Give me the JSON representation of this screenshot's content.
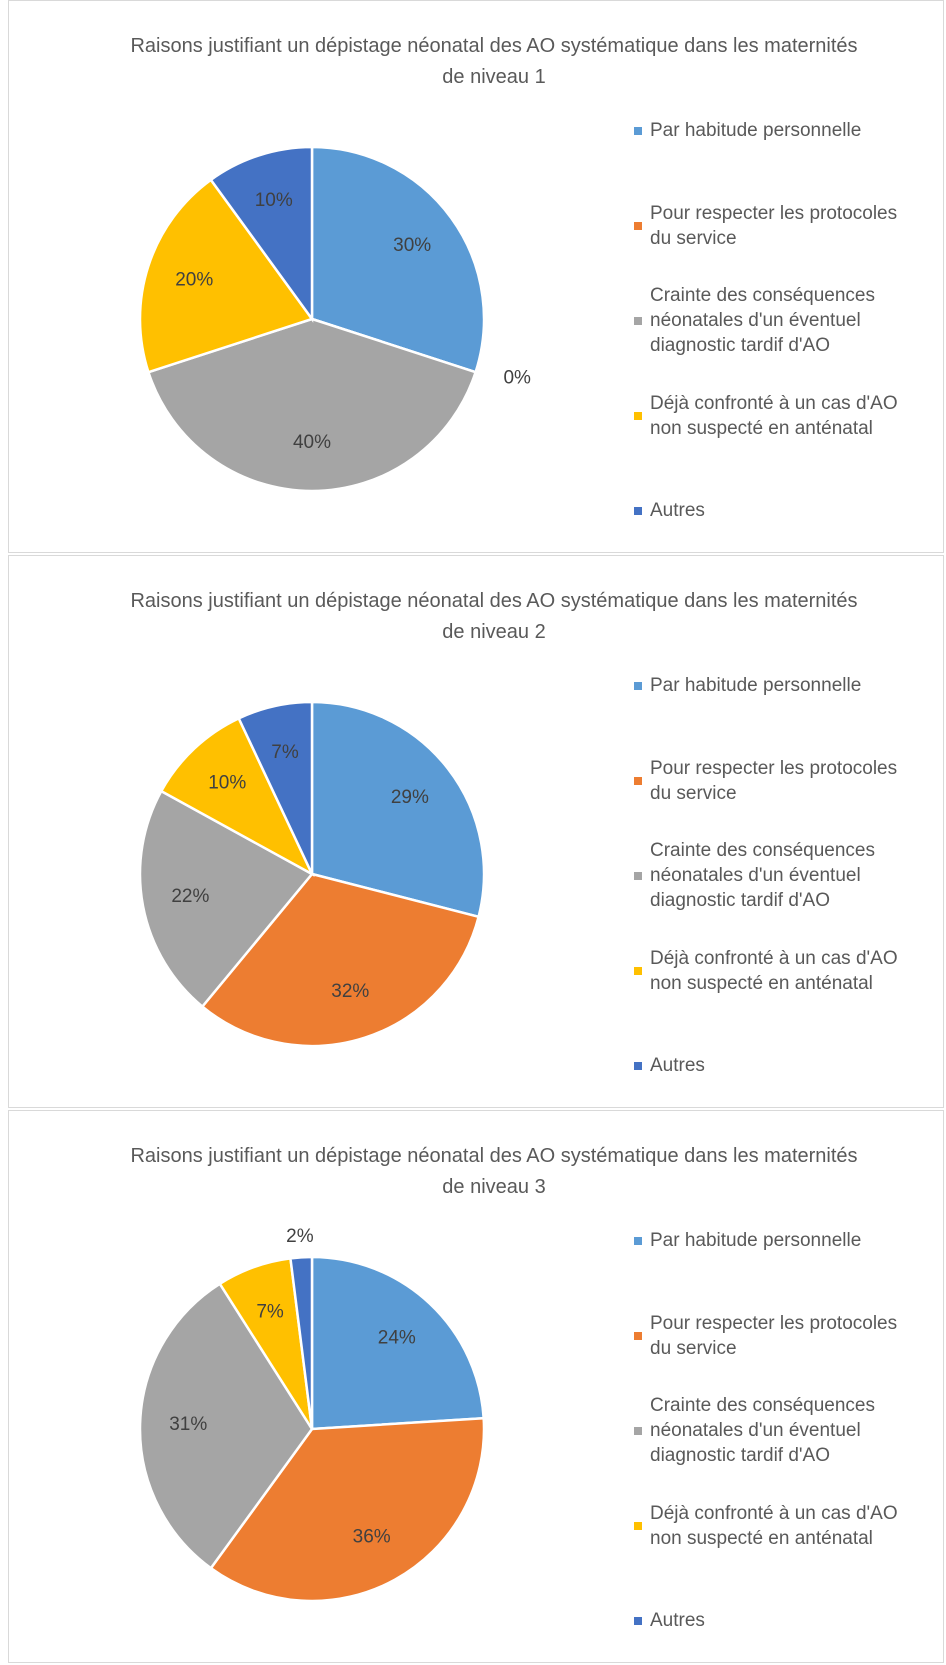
{
  "chart_data": [
    {
      "type": "pie",
      "title": "Raisons justifiant un dépistage néonatal des AO systématique dans les maternités de niveau 1",
      "categories": [
        "Par habitude personnelle",
        "Pour respecter les protocoles du service",
        "Crainte des conséquences néonatales d'un éventuel diagnostic tardif d'AO",
        "Déjà confronté à un cas d'AO non suspecté en anténatal",
        "Autres"
      ],
      "values": [
        30,
        0,
        40,
        20,
        10
      ],
      "value_labels": [
        "30%",
        "0%",
        "40%",
        "20%",
        "10%"
      ],
      "colors": [
        "#5b9bd5",
        "#ed7d31",
        "#a5a5a5",
        "#ffc000",
        "#4472c4"
      ],
      "legend": "right"
    },
    {
      "type": "pie",
      "title": "Raisons justifiant un dépistage néonatal des AO systématique dans les maternités de niveau 2",
      "categories": [
        "Par habitude personnelle",
        "Pour respecter les protocoles du service",
        "Crainte des conséquences néonatales d'un éventuel diagnostic tardif d'AO",
        "Déjà confronté à un cas d'AO non suspecté en anténatal",
        "Autres"
      ],
      "values": [
        29,
        32,
        22,
        10,
        7
      ],
      "value_labels": [
        "29%",
        "32%",
        "22%",
        "10%",
        "7%"
      ],
      "colors": [
        "#5b9bd5",
        "#ed7d31",
        "#a5a5a5",
        "#ffc000",
        "#4472c4"
      ],
      "legend": "right"
    },
    {
      "type": "pie",
      "title": "Raisons justifiant un dépistage néonatal des AO systématique dans les maternités de niveau 3",
      "categories": [
        "Par habitude personnelle",
        "Pour respecter les protocoles du service",
        "Crainte des conséquences néonatales d'un éventuel diagnostic tardif d'AO",
        "Déjà confronté à un cas d'AO non suspecté en anténatal",
        "Autres"
      ],
      "values": [
        24,
        36,
        31,
        7,
        2
      ],
      "value_labels": [
        "24%",
        "36%",
        "31%",
        "7%",
        "2%"
      ],
      "colors": [
        "#5b9bd5",
        "#ed7d31",
        "#a5a5a5",
        "#ffc000",
        "#4472c4"
      ],
      "legend": "right"
    }
  ]
}
